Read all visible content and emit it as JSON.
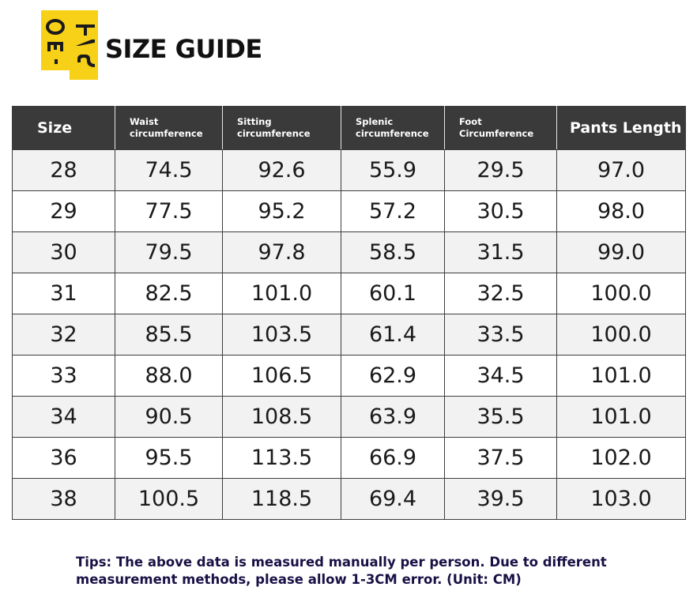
{
  "header": {
    "title": "SIZE GUIDE"
  },
  "colors": {
    "logo_yellow": "#f7d117",
    "header_bg": "#3a3a3a",
    "row_shade": "#f2f2f2",
    "tips_text": "#1a1045"
  },
  "table": {
    "columns": [
      {
        "line1": "Size",
        "line2": ""
      },
      {
        "line1": "Waist",
        "line2": "circumference"
      },
      {
        "line1": "Sitting",
        "line2": "circumference"
      },
      {
        "line1": "Splenic",
        "line2": "circumference"
      },
      {
        "line1": "Foot",
        "line2": "Circumference"
      },
      {
        "line1": "Pants Length",
        "line2": ""
      }
    ],
    "rows": [
      [
        "28",
        "74.5",
        "92.6",
        "55.9",
        "29.5",
        "97.0"
      ],
      [
        "29",
        "77.5",
        "95.2",
        "57.2",
        "30.5",
        "98.0"
      ],
      [
        "30",
        "79.5",
        "97.8",
        "58.5",
        "31.5",
        "99.0"
      ],
      [
        "31",
        "82.5",
        "101.0",
        "60.1",
        "32.5",
        "100.0"
      ],
      [
        "32",
        "85.5",
        "103.5",
        "61.4",
        "33.5",
        "100.0"
      ],
      [
        "33",
        "88.0",
        "106.5",
        "62.9",
        "34.5",
        "101.0"
      ],
      [
        "34",
        "90.5",
        "108.5",
        "63.9",
        "35.5",
        "101.0"
      ],
      [
        "36",
        "95.5",
        "113.5",
        "66.9",
        "37.5",
        "102.0"
      ],
      [
        "38",
        "100.5",
        "118.5",
        "69.4",
        "39.5",
        "103.0"
      ]
    ]
  },
  "tips": {
    "line1": "Tips: The above data is measured manually per person. Due to different",
    "line2": "measurement methods, please allow 1-3CM error. (Unit: CM)"
  }
}
